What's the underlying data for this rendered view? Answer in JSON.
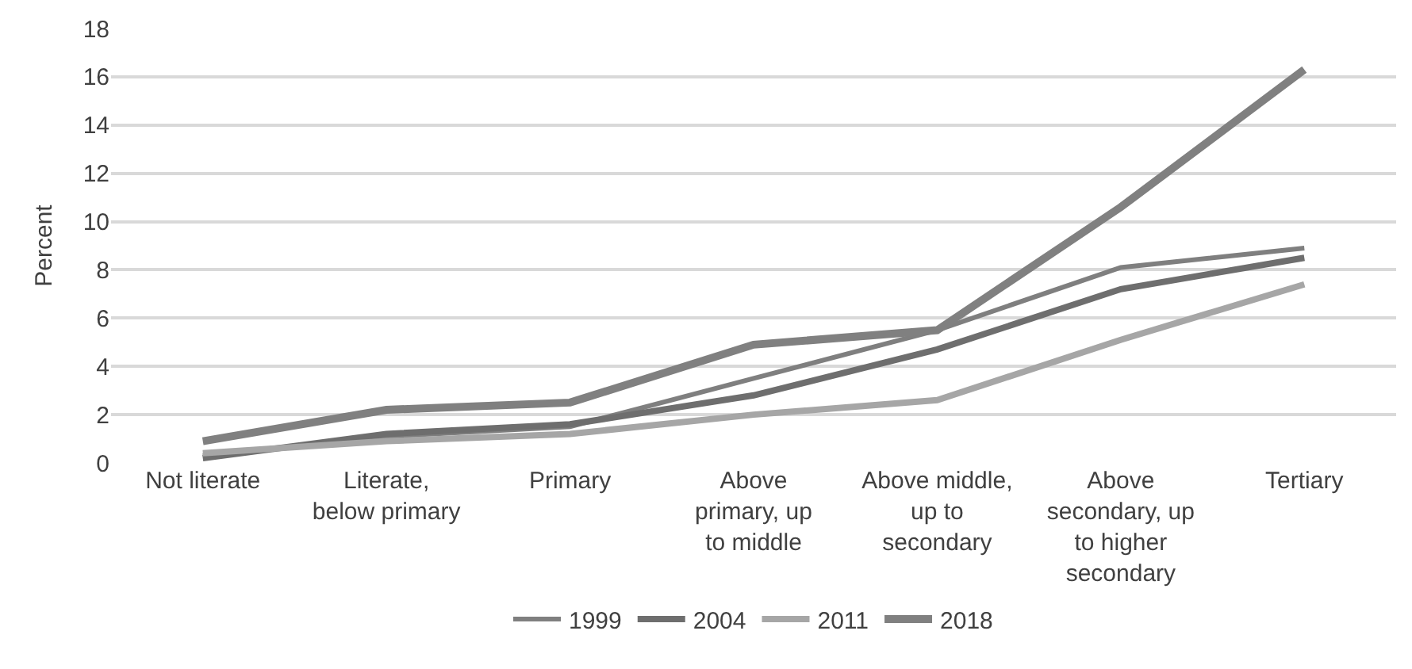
{
  "chart_data": {
    "type": "line",
    "ylabel": "Percent",
    "categories": [
      "Not literate",
      "Literate, below primary",
      "Primary",
      "Above primary, up to middle",
      "Above middle, up to secondary",
      "Above secondary, up to higher secondary",
      "Tertiary"
    ],
    "series": [
      {
        "name": "1999",
        "color": "#7f7f7f",
        "values": [
          0.3,
          1.1,
          1.5,
          3.5,
          5.5,
          8.1,
          8.9
        ]
      },
      {
        "name": "2004",
        "color": "#6e6e6e",
        "values": [
          0.2,
          1.2,
          1.6,
          2.8,
          4.7,
          7.2,
          8.5
        ]
      },
      {
        "name": "2011",
        "color": "#a6a6a6",
        "values": [
          0.4,
          0.9,
          1.2,
          2.0,
          2.6,
          5.1,
          7.4
        ]
      },
      {
        "name": "2018",
        "color": "#808080",
        "values": [
          0.9,
          2.2,
          2.5,
          4.9,
          5.5,
          10.6,
          16.3
        ]
      }
    ],
    "ylim": [
      0,
      18
    ],
    "yticks": [
      0,
      2,
      4,
      6,
      8,
      10,
      12,
      14,
      16,
      18
    ],
    "grid": "y",
    "legend": "bottom",
    "marker": "none",
    "line_style": "solid"
  }
}
